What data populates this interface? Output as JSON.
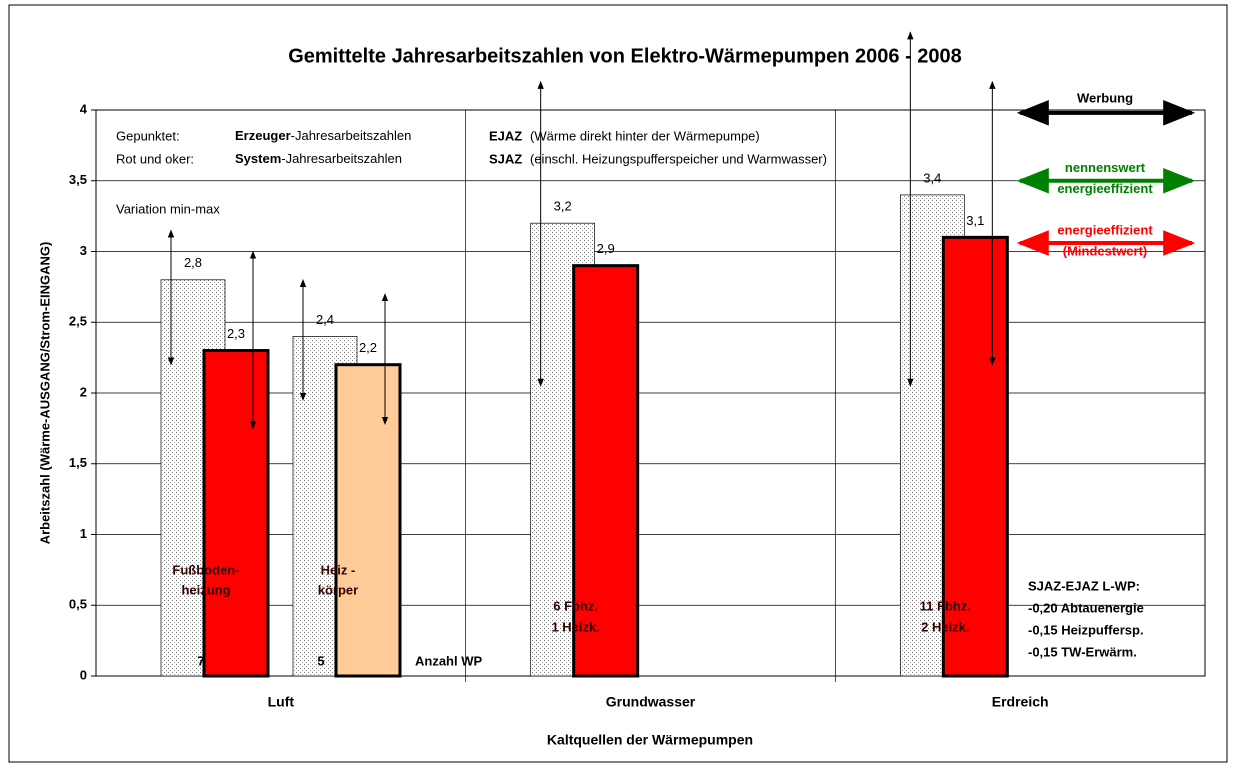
{
  "chart_data": {
    "type": "bar",
    "title": "Gemittelte Jahresarbeitszahlen von Elektro-Wärmepumpen 2006 - 2008",
    "xlabel": "Kaltquellen der Wärmepumpen",
    "ylabel": "Arbeitszahl (Wärme-AUSGANG/Strom-EINGANG)",
    "ylim": [
      0,
      4
    ],
    "yticks": [
      0,
      {
        "value": 0.5,
        "label": "0,5"
      },
      1,
      {
        "value": 1.5,
        "label": "1,5"
      },
      2,
      {
        "value": 2.5,
        "label": "2,5"
      },
      3,
      {
        "value": 3.5,
        "label": "3,5"
      },
      4
    ],
    "grid": true,
    "categories": [
      {
        "name": "Luft",
        "groups": [
          {
            "values": [
              2.8,
              2.3
            ],
            "value_labels": [
              "2,8",
              "2,3"
            ],
            "fills": [
              "dotted",
              "#ff0000"
            ],
            "ranges": [
              [
                2.2,
                3.15
              ],
              [
                1.75,
                3.0
              ]
            ],
            "label": [
              "Fußboden-",
              "heizung"
            ],
            "count": "7"
          },
          {
            "values": [
              2.4,
              2.2
            ],
            "value_labels": [
              "2,4",
              "2,2"
            ],
            "fills": [
              "dotted",
              "#ffcc99"
            ],
            "ranges": [
              [
                1.95,
                2.8
              ],
              [
                1.78,
                2.7
              ]
            ],
            "label": [
              "Heiz -",
              "körper"
            ],
            "count": "5"
          }
        ]
      },
      {
        "name": "Grundwasser",
        "groups": [
          {
            "values": [
              3.2,
              2.9
            ],
            "value_labels": [
              "3,2",
              "2,9"
            ],
            "fills": [
              "dotted",
              "#ff0000"
            ],
            "ranges": [
              [
                2.05,
                4.2
              ],
              null
            ],
            "label": [
              "6 Fbhz.",
              "1 Heizk."
            ]
          }
        ]
      },
      {
        "name": "Erdreich",
        "groups": [
          {
            "values": [
              3.4,
              3.1
            ],
            "value_labels": [
              "3,4",
              "3,1"
            ],
            "fills": [
              "dotted",
              "#ff0000"
            ],
            "ranges": [
              [
                2.05,
                4.55
              ],
              [
                2.2,
                4.2
              ]
            ],
            "label": [
              "11 Fbhz.",
              "2 Heizk."
            ]
          }
        ]
      }
    ],
    "count_label": "Anzahl WP",
    "range_label": "Variation min-max",
    "notes": [
      [
        "Gepunktet:",
        "Erzeuger",
        "-Jahresarbeitszahlen",
        "EJAZ",
        "(Wärme direkt hinter der Wärmepumpe)"
      ],
      [
        "Rot und oker:",
        "System",
        "-Jahresarbeitszahlen",
        "SJAZ",
        "(einschl. Heizungspufferspeicher und Warmwasser)"
      ]
    ],
    "thresholds": [
      {
        "value": 3.98,
        "color": "#000000",
        "labels": [
          "Werbung"
        ]
      },
      {
        "value": 3.5,
        "color": "#008000",
        "labels": [
          "nennenswert",
          "energieeffizient"
        ]
      },
      {
        "value": 3.06,
        "color": "#ff0000",
        "labels": [
          "energieeffizient",
          "(Mindestwert)"
        ]
      }
    ],
    "diff_box": [
      "SJAZ-EJAZ  L-WP:",
      "-0,20 Abtauenergie",
      "-0,15 Heizpuffersp.",
      "-0,15 TW-Erwärm."
    ]
  }
}
